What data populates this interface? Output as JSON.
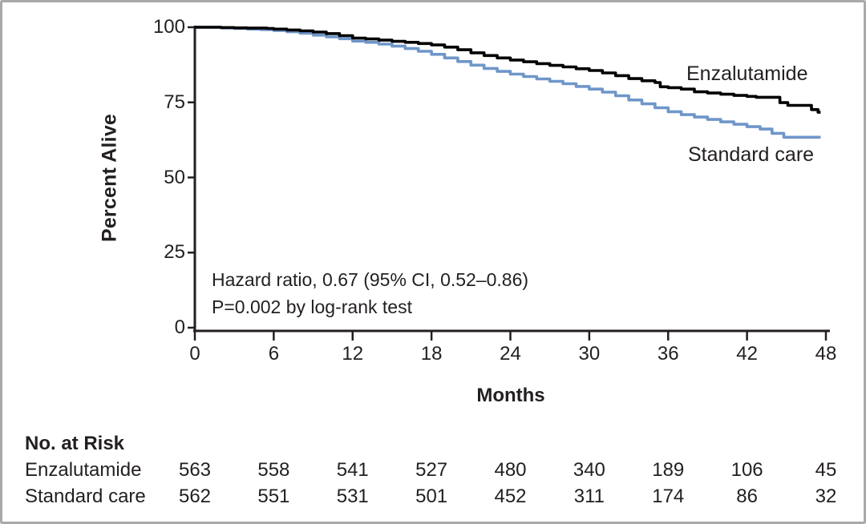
{
  "figure": {
    "background": "#ffffff",
    "border_color": "#a9a9a9"
  },
  "colors": {
    "enzalutamide_curve": "#000000",
    "standard_care_curve": "#6f96c9",
    "axis": "#231f20",
    "text": "#231f20"
  },
  "chart_data": {
    "type": "line",
    "subtype": "kaplan-meier-step",
    "title": "",
    "xlabel": "Months",
    "ylabel": "Percent Alive",
    "xlim": [
      0,
      48
    ],
    "ylim": [
      0,
      100
    ],
    "xticks": [
      0,
      6,
      12,
      18,
      24,
      30,
      36,
      42,
      48
    ],
    "yticks": [
      100,
      75,
      50,
      25,
      0
    ],
    "grid": false,
    "legend_position": "labels-at-line-end",
    "annotations": [
      "Hazard ratio, 0.67 (95% CI, 0.52–0.86)",
      "P=0.002 by log-rank test"
    ],
    "series": [
      {
        "name": "Standard care",
        "color": "#6f96c9",
        "label_position": "below-line-right",
        "points": [
          [
            0,
            100
          ],
          [
            2,
            99.8
          ],
          [
            3,
            99.6
          ],
          [
            4,
            99.4
          ],
          [
            5,
            99.2
          ],
          [
            6,
            98.9
          ],
          [
            7,
            98.5
          ],
          [
            8,
            98.0
          ],
          [
            9,
            97.4
          ],
          [
            10,
            96.8
          ],
          [
            11,
            96.2
          ],
          [
            12,
            95.4
          ],
          [
            13,
            95.0
          ],
          [
            14,
            94.4
          ],
          [
            15,
            93.7
          ],
          [
            16,
            92.9
          ],
          [
            17,
            92.0
          ],
          [
            18,
            91.0
          ],
          [
            19,
            89.8
          ],
          [
            20,
            88.6
          ],
          [
            21,
            87.4
          ],
          [
            22,
            86.3
          ],
          [
            23,
            85.3
          ],
          [
            24,
            84.4
          ],
          [
            25,
            83.6
          ],
          [
            26,
            82.8
          ],
          [
            27,
            82.0
          ],
          [
            28,
            81.2
          ],
          [
            29,
            80.3
          ],
          [
            30,
            79.4
          ],
          [
            31,
            78.4
          ],
          [
            32,
            77.2
          ],
          [
            33,
            75.8
          ],
          [
            34,
            74.5
          ],
          [
            35,
            73.2
          ],
          [
            36,
            71.9
          ],
          [
            37,
            70.9
          ],
          [
            38,
            70.1
          ],
          [
            39,
            69.3
          ],
          [
            40,
            68.5
          ],
          [
            41,
            67.7
          ],
          [
            42,
            66.9
          ],
          [
            43,
            66.1
          ],
          [
            43.9,
            64.7
          ],
          [
            44.8,
            63.4
          ],
          [
            47.6,
            63.4
          ]
        ]
      },
      {
        "name": "Enzalutamide",
        "color": "#000000",
        "label_position": "above-line-right",
        "points": [
          [
            0,
            100
          ],
          [
            2,
            99.9
          ],
          [
            3,
            99.8
          ],
          [
            4,
            99.7
          ],
          [
            5.5,
            99.6
          ],
          [
            6,
            99.4
          ],
          [
            7,
            99.1
          ],
          [
            8,
            98.8
          ],
          [
            9,
            98.4
          ],
          [
            10,
            97.9
          ],
          [
            11,
            97.2
          ],
          [
            12,
            96.4
          ],
          [
            13,
            96.1
          ],
          [
            14,
            95.7
          ],
          [
            15,
            95.3
          ],
          [
            16,
            95.0
          ],
          [
            17,
            94.6
          ],
          [
            18,
            94.1
          ],
          [
            19,
            93.4
          ],
          [
            20,
            92.5
          ],
          [
            21,
            91.5
          ],
          [
            22,
            90.6
          ],
          [
            23,
            89.8
          ],
          [
            24,
            89.1
          ],
          [
            25,
            88.5
          ],
          [
            26,
            87.9
          ],
          [
            27,
            87.3
          ],
          [
            28,
            86.8
          ],
          [
            29,
            86.2
          ],
          [
            30,
            85.6
          ],
          [
            31,
            84.8
          ],
          [
            32,
            83.9
          ],
          [
            33,
            82.9
          ],
          [
            34,
            82.2
          ],
          [
            35,
            81.6
          ],
          [
            35.4,
            80.2
          ],
          [
            36,
            79.9
          ],
          [
            37,
            79.4
          ],
          [
            38,
            78.5
          ],
          [
            39,
            78.1
          ],
          [
            40,
            77.7
          ],
          [
            41,
            77.3
          ],
          [
            42,
            77.0
          ],
          [
            42.7,
            76.7
          ],
          [
            44.5,
            74.9
          ],
          [
            45.1,
            74.0
          ],
          [
            46.9,
            72.6
          ],
          [
            47.4,
            71.7
          ],
          [
            47.6,
            71.7
          ]
        ]
      }
    ],
    "risk_table": {
      "title": "No. at Risk",
      "months": [
        0,
        6,
        12,
        18,
        24,
        30,
        36,
        42,
        48
      ],
      "rows": [
        {
          "label": "Enzalutamide",
          "values": [
            563,
            558,
            541,
            527,
            480,
            340,
            189,
            106,
            45
          ]
        },
        {
          "label": "Standard care",
          "values": [
            562,
            551,
            531,
            501,
            452,
            311,
            174,
            86,
            32
          ]
        }
      ]
    }
  }
}
